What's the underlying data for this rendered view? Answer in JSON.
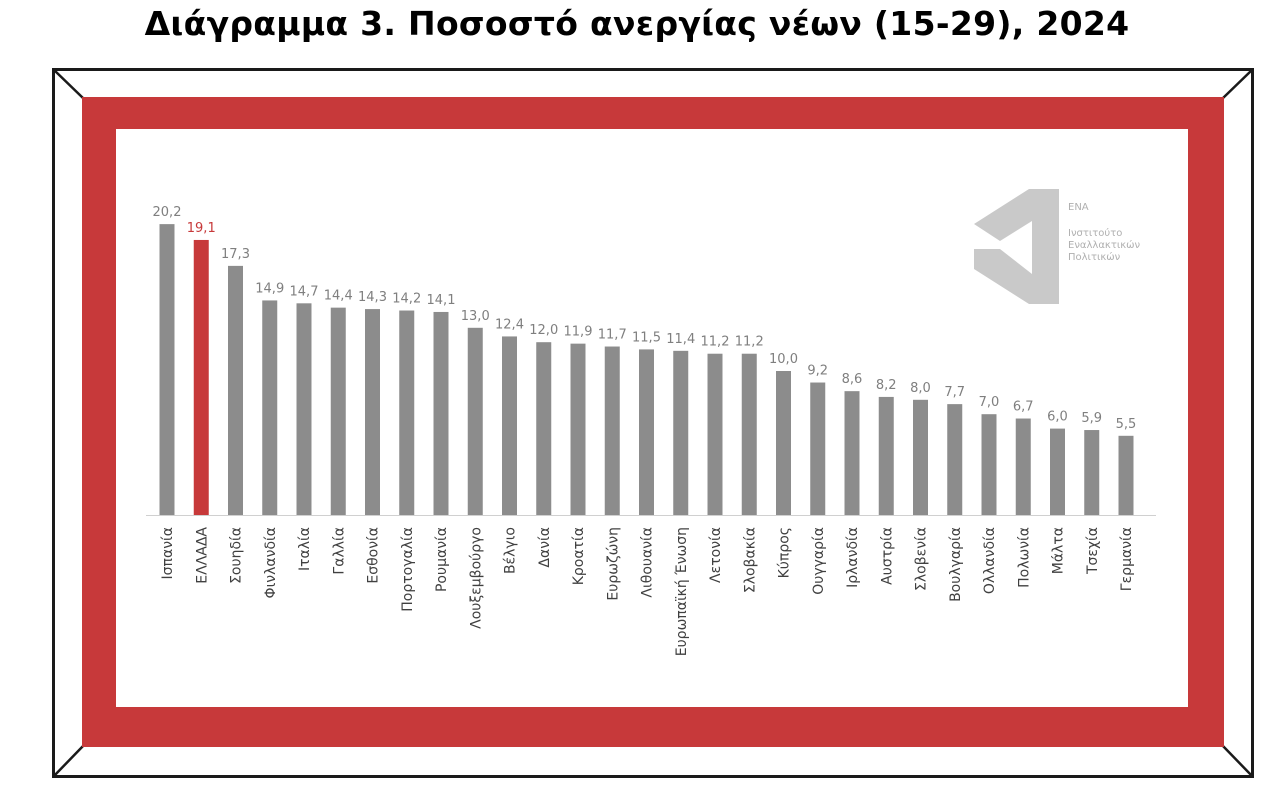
{
  "title": "Διάγραμμα 3. Ποσοστό ανεργίας νέων (15-29), 2024",
  "logo": {
    "name": "ΕΝΑ",
    "subtitle": "Ινστιτούτο Εναλλακτικών Πολιτικών"
  },
  "colors": {
    "bar": "#8c8c8c",
    "highlight": "#c7393a",
    "frame_red": "#c7393a",
    "label": "#7f7f7f"
  },
  "chart_data": {
    "type": "bar",
    "title": "",
    "xlabel": "",
    "ylabel": "",
    "ylim": [
      0,
      22
    ],
    "grid": false,
    "legend": "none",
    "highlight_category": "ΕΛΛΑΔΑ",
    "categories": [
      "Ισπανία",
      "ΕΛΛΑΔΑ",
      "Σουηδία",
      "Φινλανδία",
      "Ιταλία",
      "Γαλλία",
      "Εσθονία",
      "Πορτογαλία",
      "Ρουμανία",
      "Λουξεμβούργο",
      "Βέλγιο",
      "Δανία",
      "Κροατία",
      "Ευρωζώνη",
      "Λιθουανία",
      "Ευρωπαϊκή Ένωση",
      "Λετονία",
      "Σλοβακία",
      "Κύπρος",
      "Ουγγαρία",
      "Ιρλανδία",
      "Αυστρία",
      "Σλοβενία",
      "Βουλγαρία",
      "Ολλανδία",
      "Πολωνία",
      "Μάλτα",
      "Τσεχία",
      "Γερμανία"
    ],
    "values": [
      20.2,
      19.1,
      17.3,
      14.9,
      14.7,
      14.4,
      14.3,
      14.2,
      14.1,
      13.0,
      12.4,
      12.0,
      11.9,
      11.7,
      11.5,
      11.4,
      11.2,
      11.2,
      10.0,
      9.2,
      8.6,
      8.2,
      8.0,
      7.7,
      7.0,
      6.7,
      6.0,
      5.9,
      5.5
    ],
    "value_labels": [
      "20,2",
      "19,1",
      "17,3",
      "14,9",
      "14,7",
      "14,4",
      "14,3",
      "14,2",
      "14,1",
      "13,0",
      "12,4",
      "12,0",
      "11,9",
      "11,7",
      "11,5",
      "11,4",
      "11,2",
      "11,2",
      "10,0",
      "9,2",
      "8,6",
      "8,2",
      "8,0",
      "7,7",
      "7,0",
      "6,7",
      "6,0",
      "5,9",
      "5,5"
    ]
  }
}
